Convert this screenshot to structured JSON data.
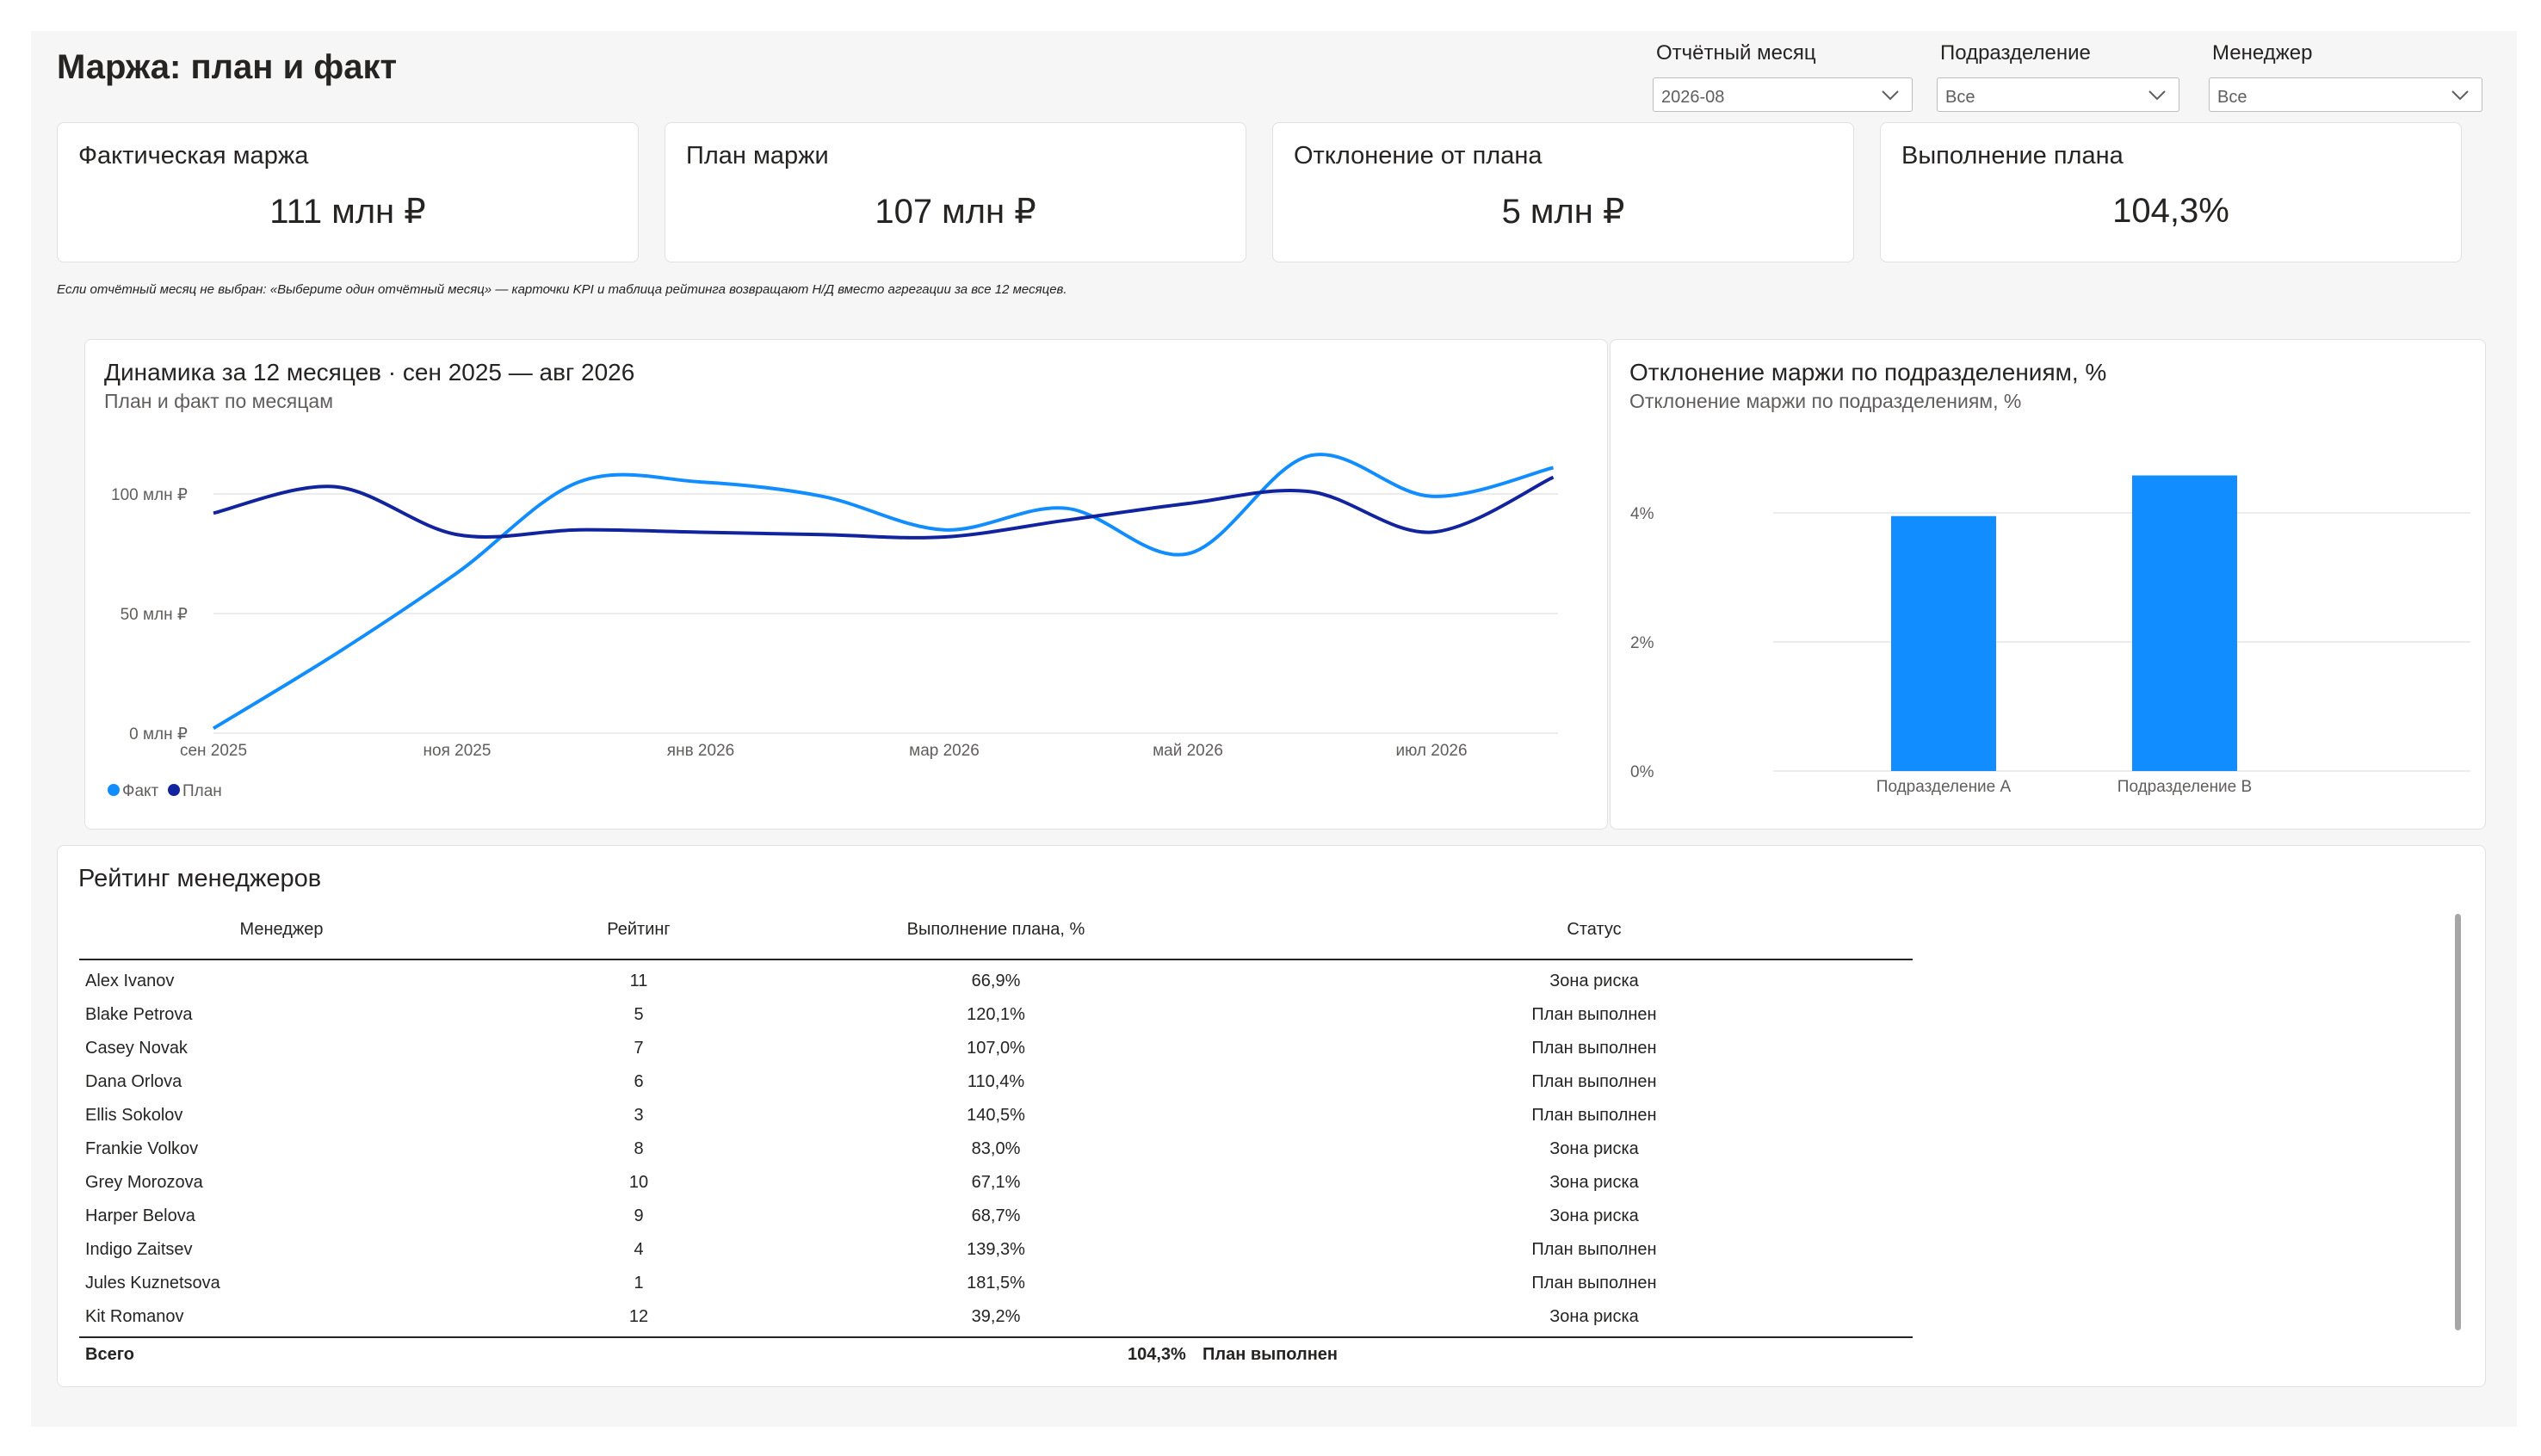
{
  "page_title": "Маржа: план и факт",
  "filters": [
    {
      "label": "Отчётный месяц",
      "value": "2026-08"
    },
    {
      "label": "Подразделение",
      "value": "Все"
    },
    {
      "label": "Менеджер",
      "value": "Все"
    }
  ],
  "kpis": [
    {
      "label": "Фактическая маржа",
      "value": "111 млн ₽"
    },
    {
      "label": "План маржи",
      "value": "107 млн ₽"
    },
    {
      "label": "Отклонение от плана",
      "value": "5 млн ₽"
    },
    {
      "label": "Выполнение плана",
      "value": "104,3%"
    }
  ],
  "note": "Если отчётный месяц не выбран: «Выберите один отчётный месяц» — карточки KPI и таблица рейтинга возвращают Н/Д вместо агрегации за все 12 месяцев.",
  "line_panel": {
    "title": "Динамика за 12 месяцев · сен 2025 — авг 2026",
    "subtitle": "План и факт по месяцам"
  },
  "bar_panel": {
    "title": "Отклонение маржи по подразделениям, %",
    "subtitle": "Отклонение маржи по подразделениям, %"
  },
  "chart_data": [
    {
      "type": "line",
      "x": [
        "сен 2025",
        "окт 2025",
        "ноя 2025",
        "дек 2025",
        "янв 2026",
        "фев 2026",
        "мар 2026",
        "апр 2026",
        "май 2026",
        "июн 2026",
        "июл 2026",
        "авг 2026"
      ],
      "x_tick_labels": [
        "сен 2025",
        "ноя 2025",
        "янв 2026",
        "мар 2026",
        "май 2026",
        "июл 2026"
      ],
      "series": [
        {
          "name": "Факт",
          "color": "#118dff",
          "values": [
            2,
            33,
            67,
            105,
            105,
            99,
            85,
            94,
            75,
            116,
            99,
            111
          ]
        },
        {
          "name": "План",
          "color": "#12239e",
          "values": [
            92,
            103,
            83,
            85,
            84,
            83,
            82,
            89,
            96,
            101,
            84,
            107
          ]
        }
      ],
      "y_ticks": [
        "0 млн ₽",
        "50 млн ₽",
        "100 млн ₽"
      ],
      "ylim": [
        0,
        120
      ],
      "legend": "bottom-left",
      "grid": true
    },
    {
      "type": "bar",
      "categories": [
        "Подразделение A",
        "Подразделение B"
      ],
      "values": [
        3.95,
        4.58
      ],
      "color": "#118dff",
      "y_ticks": [
        "0%",
        "2%",
        "4%"
      ],
      "ylim": [
        0,
        5
      ],
      "grid": true
    }
  ],
  "table": {
    "title": "Рейтинг менеджеров",
    "columns": [
      "Менеджер",
      "Рейтинг",
      "Выполнение плана, %",
      "Статус"
    ],
    "rows": [
      [
        "Alex Ivanov",
        "11",
        "66,9%",
        "Зона риска"
      ],
      [
        "Blake Petrova",
        "5",
        "120,1%",
        "План выполнен"
      ],
      [
        "Casey Novak",
        "7",
        "107,0%",
        "План выполнен"
      ],
      [
        "Dana Orlova",
        "6",
        "110,4%",
        "План выполнен"
      ],
      [
        "Ellis Sokolov",
        "3",
        "140,5%",
        "План выполнен"
      ],
      [
        "Frankie Volkov",
        "8",
        "83,0%",
        "Зона риска"
      ],
      [
        "Grey Morozova",
        "10",
        "67,1%",
        "Зона риска"
      ],
      [
        "Harper Belova",
        "9",
        "68,7%",
        "Зона риска"
      ],
      [
        "Indigo Zaitsev",
        "4",
        "139,3%",
        "План выполнен"
      ],
      [
        "Jules Kuznetsova",
        "1",
        "181,5%",
        "План выполнен"
      ],
      [
        "Kit Romanov",
        "12",
        "39,2%",
        "Зона риска"
      ]
    ],
    "total": {
      "label": "Всего",
      "value": "104,3%",
      "status": "План выполнен"
    }
  }
}
